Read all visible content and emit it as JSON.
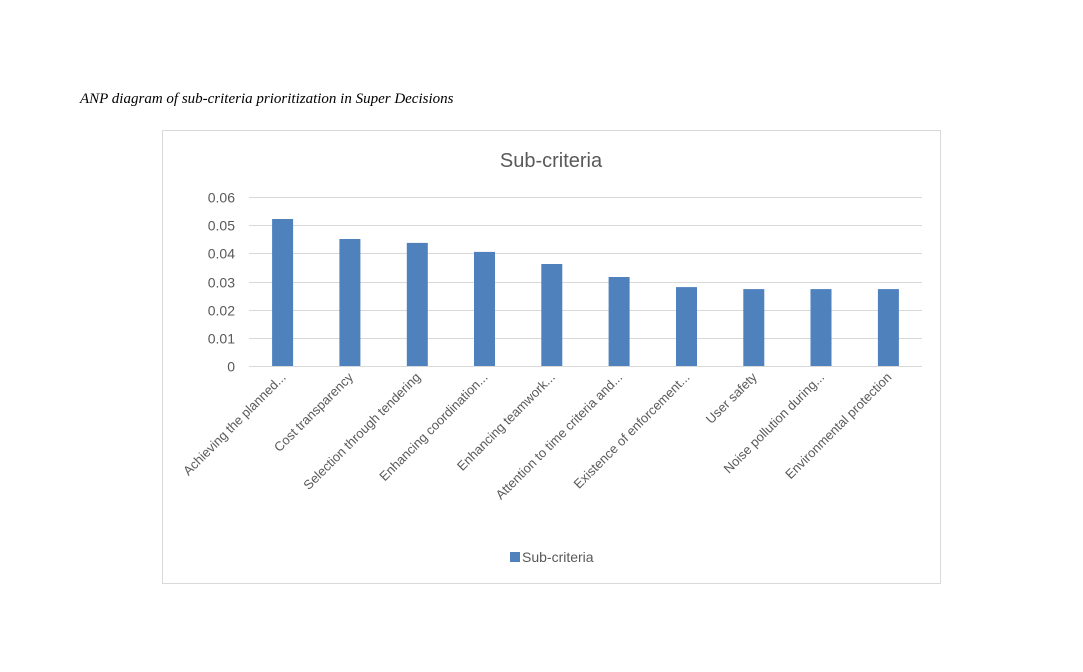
{
  "caption": "ANP diagram of sub-criteria prioritization in Super Decisions",
  "chart_data": {
    "type": "bar",
    "title": "Sub-criteria",
    "xlabel": "",
    "ylabel": "",
    "ylim": [
      0,
      0.06
    ],
    "yticks": [
      0,
      0.01,
      0.02,
      0.03,
      0.04,
      0.05,
      0.06
    ],
    "ytick_labels": [
      "0",
      "0.01",
      "0.02",
      "0.03",
      "0.04",
      "0.05",
      "0.06"
    ],
    "grid": true,
    "legend_position": "bottom",
    "categories": [
      "Achieving the planned...",
      "Cost transparency",
      "Selection through tendering",
      "Enhancing coordination...",
      "Enhancing teamwork...",
      "Attention to time criteria and...",
      "Existence of enforcement...",
      "User safety",
      "Noise pollution during...",
      "Environmental protection"
    ],
    "series": [
      {
        "name": "Sub-criteria",
        "color": "#4f81bd",
        "values": [
          0.0522,
          0.0451,
          0.0437,
          0.0405,
          0.0362,
          0.0316,
          0.028,
          0.0273,
          0.0273,
          0.0273
        ]
      }
    ]
  }
}
